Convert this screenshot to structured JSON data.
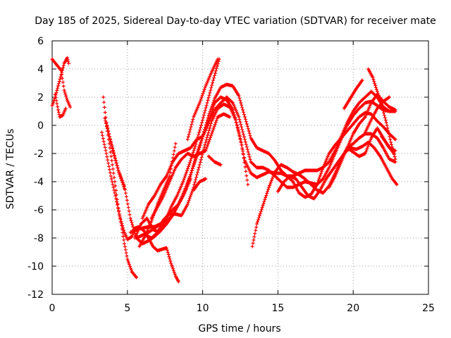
{
  "chart_data": {
    "type": "scatter",
    "title": "Day 185 of 2025, Sidereal Day-to-day VTEC variation (SDTVAR) for receiver mate",
    "xlabel": "GPS time / hours",
    "ylabel": "SDTVAR / TECUs",
    "xlim": [
      0,
      25
    ],
    "ylim": [
      -12,
      6
    ],
    "xticks": [
      0,
      5,
      10,
      15,
      20,
      25
    ],
    "yticks": [
      -12,
      -10,
      -8,
      -6,
      -4,
      -2,
      0,
      2,
      4,
      6
    ],
    "grid": true,
    "marker": "+",
    "color": "#ff0000",
    "series": [
      {
        "x": [
          0.0,
          0.3,
          0.6,
          0.8,
          1.0,
          1.2
        ],
        "y": [
          4.7,
          4.3,
          3.9,
          2.5,
          1.8,
          1.3
        ]
      },
      {
        "x": [
          0.0,
          0.2,
          0.4,
          0.6,
          0.8,
          1.0,
          1.1
        ],
        "y": [
          1.4,
          2.0,
          2.8,
          3.6,
          4.4,
          4.8,
          4.4
        ]
      },
      {
        "x": [
          0.2,
          0.4,
          0.5,
          0.7,
          0.9
        ],
        "y": [
          2.2,
          1.1,
          0.6,
          0.7,
          1.2
        ]
      },
      {
        "x": [
          3.3,
          3.6,
          3.9,
          4.2,
          4.5,
          4.8,
          5.0,
          5.3,
          5.5,
          5.8,
          6.1,
          6.4,
          6.7,
          7.0,
          7.3,
          7.6,
          7.9,
          8.2,
          8.4
        ],
        "y": [
          -0.5,
          -2.0,
          -3.6,
          -5.0,
          -6.5,
          -7.6,
          -8.1,
          -7.9,
          -7.3,
          -7.2,
          -7.5,
          -8.0,
          -8.6,
          -8.9,
          -8.8,
          -8.7,
          -9.8,
          -10.7,
          -11.1
        ]
      },
      {
        "x": [
          3.4,
          3.6,
          3.8,
          4.0,
          4.2,
          4.4,
          4.6,
          4.8,
          5.0,
          5.3,
          5.6
        ],
        "y": [
          2.0,
          0.2,
          -1.3,
          -2.8,
          -4.3,
          -5.9,
          -7.1,
          -8.4,
          -9.5,
          -10.4,
          -10.8
        ]
      },
      {
        "x": [
          3.5,
          3.8,
          4.1,
          4.4,
          4.8,
          5.2,
          5.6,
          6.0,
          6.4,
          6.8,
          7.2,
          7.6,
          8.0,
          8.4,
          8.8,
          9.2
        ],
        "y": [
          0.5,
          -0.8,
          -2.0,
          -3.2,
          -4.3,
          -6.6,
          -8.0,
          -8.4,
          -8.2,
          -7.9,
          -7.5,
          -7.0,
          -6.4,
          -5.6,
          -4.8,
          -3.8
        ]
      },
      {
        "x": [
          3.6,
          4.0,
          4.4,
          4.8
        ],
        "y": [
          0.2,
          -1.6,
          -3.2,
          -4.5
        ]
      },
      {
        "x": [
          5.2,
          5.6,
          6.0,
          6.4,
          6.8,
          7.2,
          7.6,
          8.0,
          8.4,
          8.8,
          9.2,
          9.6,
          10.0,
          10.4,
          10.8,
          11.2,
          11.6,
          12.0,
          12.4,
          12.8,
          13.2,
          13.6,
          14.0,
          14.4,
          14.8,
          15.2,
          15.6,
          16.0,
          16.4,
          16.8,
          17.2,
          17.6,
          18.0,
          18.4,
          18.8,
          19.2,
          19.6,
          20.0,
          20.4,
          20.8,
          21.2,
          21.6,
          22.0,
          22.4,
          22.8
        ],
        "y": [
          -7.6,
          -7.4,
          -7.3,
          -7.2,
          -7.2,
          -7.0,
          -6.8,
          -6.4,
          -5.6,
          -4.6,
          -3.5,
          -2.2,
          -0.8,
          0.7,
          1.9,
          2.7,
          2.9,
          2.8,
          2.1,
          0.6,
          -0.9,
          -1.6,
          -1.8,
          -2.0,
          -2.5,
          -3.2,
          -3.6,
          -3.6,
          -3.4,
          -3.2,
          -3.2,
          -3.2,
          -3.0,
          -2.6,
          -1.8,
          -0.8,
          0.2,
          1.0,
          1.6,
          2.0,
          2.4,
          2.0,
          1.3,
          1.0,
          1.0
        ]
      },
      {
        "x": [
          5.6,
          6.0,
          6.4,
          6.8,
          7.2,
          7.6,
          8.0,
          8.4,
          8.8,
          9.2,
          9.6,
          10.0,
          10.4,
          10.8,
          11.2,
          11.6,
          12.0,
          12.4,
          12.8,
          13.2,
          13.6,
          14.0,
          14.4,
          14.8,
          15.2,
          15.6,
          16.0,
          16.4,
          16.8,
          17.2,
          17.6,
          18.0,
          18.4,
          18.8,
          19.2,
          19.6,
          20.0,
          20.4,
          20.8,
          21.2,
          21.6,
          22.0,
          22.4,
          22.8
        ],
        "y": [
          -8.0,
          -7.8,
          -7.6,
          -7.3,
          -7.0,
          -6.5,
          -6.0,
          -5.6,
          -4.8,
          -3.5,
          -2.1,
          -0.8,
          0.3,
          1.1,
          1.6,
          2.0,
          1.6,
          0.6,
          -1.0,
          -2.6,
          -3.0,
          -3.0,
          -3.2,
          -3.6,
          -4.0,
          -4.4,
          -4.4,
          -4.2,
          -4.0,
          -4.1,
          -4.2,
          -3.8,
          -3.0,
          -2.0,
          -1.0,
          0.0,
          0.7,
          1.2,
          1.6,
          1.7,
          1.4,
          1.1,
          1.0,
          1.0
        ]
      },
      {
        "x": [
          6.2,
          6.6,
          7.0,
          7.4,
          7.8,
          8.2,
          8.6,
          9.0,
          9.4,
          9.8,
          10.2,
          10.6,
          11.0,
          11.4,
          11.8,
          12.2,
          12.6,
          13.0
        ],
        "y": [
          -7.8,
          -8.0,
          -7.6,
          -6.7,
          -6.3,
          -6.3,
          -6.4,
          -5.6,
          -4.4,
          -2.8,
          -1.2,
          0.3,
          1.2,
          1.5,
          1.3,
          0.4,
          -1.4,
          -4.2
        ]
      },
      {
        "x": [
          5.5,
          5.9,
          6.3,
          6.7,
          7.1,
          7.5,
          7.9,
          8.3,
          8.7,
          9.1,
          9.5,
          9.9,
          10.3,
          10.7,
          11.1
        ],
        "y": [
          -8.0,
          -7.0,
          -6.6,
          -7.4,
          -7.6,
          -6.8,
          -5.8,
          -5.0,
          -4.0,
          -2.8,
          -1.5,
          0.0,
          1.6,
          3.2,
          4.7
        ]
      },
      {
        "x": [
          6.0,
          6.4,
          6.8,
          7.2,
          7.6,
          8.0,
          8.4,
          8.8,
          9.2,
          9.6,
          10.0,
          10.4,
          10.8,
          11.2,
          11.6,
          12.0,
          12.4,
          12.8,
          13.2,
          13.6,
          14.0,
          14.4,
          14.8,
          15.2,
          15.6,
          16.0,
          16.4,
          16.8,
          17.2,
          17.6,
          18.0,
          18.4,
          18.8,
          19.2,
          19.6,
          20.0,
          20.4,
          20.8,
          21.2,
          21.6,
          22.0,
          22.4,
          22.8
        ],
        "y": [
          -6.6,
          -5.6,
          -5.0,
          -4.2,
          -3.6,
          -2.6,
          -2.0,
          -1.8,
          -1.6,
          -1.0,
          -0.8,
          0.2,
          1.6,
          2.0,
          1.8,
          1.1,
          -0.5,
          -2.5,
          -3.4,
          -3.7,
          -3.5,
          -3.3,
          -3.4,
          -3.4,
          -3.6,
          -4.0,
          -4.8,
          -5.1,
          -4.9,
          -4.2,
          -3.0,
          -2.0,
          -1.4,
          -0.9,
          -0.4,
          0.1,
          0.6,
          0.9,
          0.8,
          0.3,
          -0.1,
          -0.6,
          -1.0
        ]
      },
      {
        "x": [
          6.6,
          7.0,
          7.4,
          7.8,
          8.2,
          8.6,
          9.0,
          9.4,
          9.8,
          10.2,
          10.6,
          11.0,
          11.4,
          11.8
        ],
        "y": [
          -6.6,
          -5.8,
          -5.0,
          -4.0,
          -3.0,
          -2.4,
          -2.0,
          -2.2,
          -2.0,
          -1.8,
          -0.6,
          0.6,
          0.8,
          0.6
        ]
      },
      {
        "x": [
          5.8,
          6.2,
          6.6,
          7.0,
          7.4,
          7.8,
          8.2
        ],
        "y": [
          -8.6,
          -7.8,
          -6.8,
          -5.6,
          -4.6,
          -3.6,
          -1.3
        ]
      },
      {
        "x": [
          9.0,
          9.4,
          9.8,
          10.2,
          10.6,
          11.0
        ],
        "y": [
          -1.0,
          0.6,
          1.6,
          2.8,
          3.8,
          4.7
        ]
      },
      {
        "x": [
          9.4,
          9.8,
          10.2
        ],
        "y": [
          -4.6,
          -4.0,
          -3.8
        ]
      },
      {
        "x": [
          10.4,
          10.8,
          11.2
        ],
        "y": [
          -2.2,
          -2.6,
          -2.8
        ]
      },
      {
        "x": [
          13.3,
          13.6,
          14.0,
          14.4,
          14.8,
          15.2,
          15.6,
          16.0,
          16.4,
          16.8,
          17.2,
          17.6,
          18.0,
          18.4,
          18.8,
          19.2,
          19.6,
          20.0,
          20.4,
          20.8,
          21.2,
          21.6,
          22.0,
          22.4,
          22.8
        ],
        "y": [
          -8.6,
          -7.0,
          -5.7,
          -4.4,
          -3.3,
          -2.8,
          -3.0,
          -3.3,
          -3.5,
          -3.8,
          -4.2,
          -4.6,
          -4.8,
          -4.3,
          -3.4,
          -2.4,
          -1.6,
          -1.3,
          -0.9,
          -0.6,
          -0.6,
          -0.9,
          -1.6,
          -2.4,
          -2.6
        ]
      },
      {
        "x": [
          15.0,
          15.4,
          15.8,
          16.2,
          16.6,
          17.0,
          17.4,
          17.8,
          18.2,
          18.6,
          19.0,
          19.4,
          19.8,
          20.2,
          20.6,
          21.0,
          21.4,
          21.8,
          22.2,
          22.6,
          22.9
        ],
        "y": [
          -4.7,
          -4.0,
          -3.6,
          -3.8,
          -4.4,
          -5.0,
          -5.2,
          -4.6,
          -3.8,
          -3.2,
          -2.6,
          -2.0,
          -1.6,
          -1.7,
          -1.5,
          -1.2,
          -1.6,
          -2.2,
          -3.0,
          -3.8,
          -4.2
        ]
      },
      {
        "x": [
          18.4,
          18.8,
          19.2,
          19.6,
          20.0,
          20.4,
          20.8,
          21.2,
          21.6,
          22.0,
          22.4,
          22.8
        ],
        "y": [
          -4.4,
          -3.6,
          -2.6,
          -1.6,
          -0.6,
          0.1,
          0.6,
          1.6,
          2.2,
          1.7,
          1.3,
          1.1
        ]
      },
      {
        "x": [
          19.6,
          20.0,
          20.4,
          20.8,
          21.2,
          21.6,
          22.0,
          22.4,
          22.8
        ],
        "y": [
          -1.6,
          -1.9,
          -2.2,
          -2.0,
          -0.9,
          -0.2,
          -0.9,
          -1.6,
          -1.8
        ]
      },
      {
        "x": [
          19.4,
          19.8,
          20.2,
          20.6
        ],
        "y": [
          1.2,
          1.9,
          2.6,
          3.2
        ]
      },
      {
        "x": [
          20.8,
          21.2,
          21.6,
          22.0,
          22.4
        ],
        "y": [
          -0.5,
          0.4,
          1.2,
          1.7,
          2.0
        ]
      },
      {
        "x": [
          21.0,
          21.3,
          21.6,
          21.9,
          22.2,
          22.5,
          22.8
        ],
        "y": [
          4.0,
          3.4,
          2.4,
          1.4,
          0.2,
          -1.2,
          -2.4
        ]
      },
      {
        "x": [
          21.9,
          22.3,
          22.7
        ],
        "y": [
          -0.8,
          -1.4,
          -2.0
        ]
      }
    ]
  }
}
